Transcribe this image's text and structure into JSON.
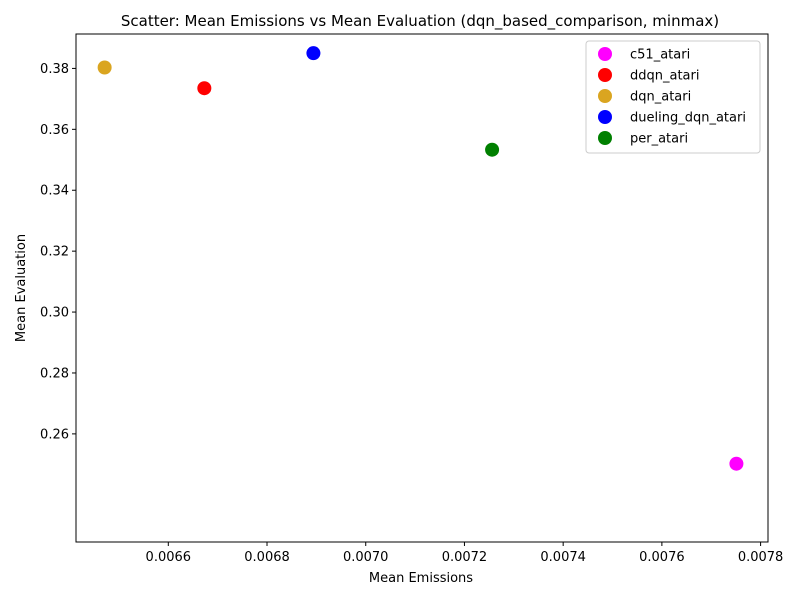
{
  "chart_data": {
    "type": "scatter",
    "title": "Scatter: Mean Emissions vs Mean Evaluation (dqn_based_comparison, minmax)",
    "xlabel": "Mean Emissions",
    "ylabel": "Mean Evaluation",
    "xlim": [
      0.006413,
      0.007815
    ],
    "ylim": [
      0.2245,
      0.3913
    ],
    "xticks": [
      0.0066,
      0.0068,
      0.007,
      0.0072,
      0.0074,
      0.0076,
      0.0078
    ],
    "xtick_labels": [
      "0.0066",
      "0.0068",
      "0.0070",
      "0.0072",
      "0.0074",
      "0.0076",
      "0.0078"
    ],
    "yticks": [
      0.26,
      0.28,
      0.3,
      0.32,
      0.34,
      0.36,
      0.38
    ],
    "ytick_labels": [
      "0.26",
      "0.28",
      "0.30",
      "0.32",
      "0.34",
      "0.36",
      "0.38"
    ],
    "grid": false,
    "legend_position": "top-right",
    "series": [
      {
        "name": "c51_atari",
        "color": "#ff00ff",
        "x": [
          0.007751
        ],
        "y": [
          0.2502
        ]
      },
      {
        "name": "ddqn_atari",
        "color": "#ff0000",
        "x": [
          0.006673
        ],
        "y": [
          0.3735
        ]
      },
      {
        "name": "dqn_atari",
        "color": "#daa520",
        "x": [
          0.006471
        ],
        "y": [
          0.3803
        ]
      },
      {
        "name": "dueling_dqn_atari",
        "color": "#0000ff",
        "x": [
          0.006894
        ],
        "y": [
          0.385
        ]
      },
      {
        "name": "per_atari",
        "color": "#008000",
        "x": [
          0.007256
        ],
        "y": [
          0.3533
        ]
      }
    ]
  }
}
